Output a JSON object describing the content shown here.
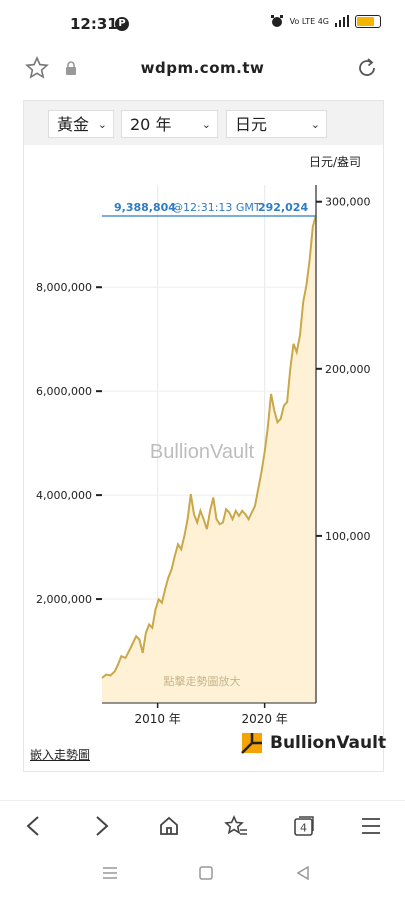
{
  "status": {
    "time": "12:31",
    "p_badge": "P",
    "net": "Vo LTE 4G"
  },
  "browser": {
    "url": "wdpm.com.tw",
    "tab_count": "4"
  },
  "widget": {
    "metal_select": "黃金",
    "period_select": "20 年",
    "currency_select": "日元",
    "unit_label": "日元/盎司",
    "watermark": "BullionVault",
    "enlarge_hint": "點擊走勢圖放大",
    "embed_link": "嵌入走勢圖",
    "logo_text": "BullionVault",
    "price_line": {
      "left_value": "9,388,804",
      "timestamp": "@12:31:13 GMT",
      "right_value": "292,024"
    }
  },
  "chart_data": {
    "type": "area",
    "left_axis": {
      "ticks": [
        2000000,
        4000000,
        6000000,
        8000000
      ],
      "tick_labels": [
        "2,000,000",
        "4,000,000",
        "6,000,000",
        "8,000,000"
      ]
    },
    "right_axis": {
      "ticks": [
        100000,
        200000,
        300000
      ],
      "tick_labels": [
        "100,000",
        "200,000",
        "300,000"
      ],
      "label": "日元/盎司"
    },
    "x_axis": {
      "ticks": [
        2010,
        2020
      ],
      "tick_labels": [
        "2010 年",
        "2020 年"
      ]
    },
    "ylim_right": [
      0,
      310000
    ],
    "series": [
      {
        "x": [
          2004.8,
          2005.2,
          2005.6,
          2006.0,
          2006.3,
          2006.6,
          2007.0,
          2007.4,
          2007.7,
          2008.0,
          2008.3,
          2008.6,
          2008.9,
          2009.2,
          2009.5,
          2009.8,
          2010.1,
          2010.4,
          2010.7,
          2011.0,
          2011.3,
          2011.6,
          2011.9,
          2012.2,
          2012.5,
          2012.8,
          2013.1,
          2013.4,
          2013.7,
          2014.0,
          2014.3,
          2014.6,
          2014.9,
          2015.2,
          2015.5,
          2015.8,
          2016.1,
          2016.4,
          2016.7,
          2017.0,
          2017.3,
          2017.6,
          2017.9,
          2018.2,
          2018.5,
          2018.8,
          2019.1,
          2019.4,
          2019.7,
          2020.0,
          2020.3,
          2020.6,
          2020.9,
          2021.2,
          2021.5,
          2021.8,
          2022.1,
          2022.4,
          2022.7,
          2023.0,
          2023.3,
          2023.6,
          2023.9,
          2024.2,
          2024.5,
          2024.8
        ],
        "y": [
          15000,
          17000,
          16500,
          19000,
          23000,
          28000,
          27000,
          32000,
          36000,
          40000,
          38000,
          30000,
          42000,
          47000,
          45000,
          56000,
          62000,
          60000,
          68000,
          75000,
          80000,
          88000,
          95000,
          92000,
          100000,
          110000,
          125000,
          113000,
          108000,
          115000,
          110000,
          104000,
          115000,
          123000,
          110000,
          107000,
          108000,
          116000,
          114000,
          110000,
          115000,
          112000,
          115000,
          113000,
          110000,
          114000,
          118000,
          128000,
          138000,
          150000,
          165000,
          185000,
          175000,
          168000,
          170000,
          178000,
          180000,
          200000,
          215000,
          210000,
          220000,
          240000,
          250000,
          265000,
          285000,
          292024
        ]
      }
    ]
  }
}
